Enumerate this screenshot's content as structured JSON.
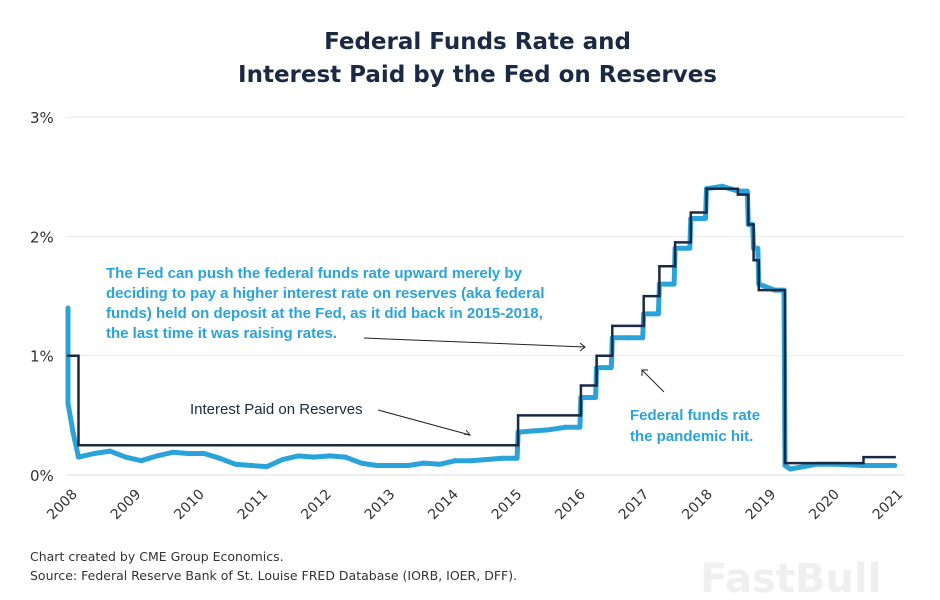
{
  "chart_data": {
    "type": "line",
    "title": "Federal Funds Rate and Interest Paid by the Fed on Reserves",
    "title_lines": [
      "Federal Funds Rate and",
      "Interest Paid by the Fed on Reserves"
    ],
    "xlabel": "",
    "ylabel": "",
    "y_ticks": [
      "0%",
      "1%",
      "2%",
      "3%"
    ],
    "ylim": [
      0,
      3
    ],
    "x_ticks": [
      "2008",
      "2009",
      "2010",
      "2011",
      "2012",
      "2013",
      "2014",
      "2015",
      "2016",
      "2017",
      "2018",
      "2019",
      "2020",
      "2021"
    ],
    "grid": "horizontal",
    "series": [
      {
        "name": "Federal funds rate",
        "color": "#2aa3db",
        "x": [
          "2008-10",
          "2008-10",
          "2008-11",
          "2008-12",
          "2009-03",
          "2009-06",
          "2009-09",
          "2009-12",
          "2010-03",
          "2010-06",
          "2010-09",
          "2010-12",
          "2011-03",
          "2011-06",
          "2011-09",
          "2011-12",
          "2012-03",
          "2012-06",
          "2012-09",
          "2012-12",
          "2013-03",
          "2013-06",
          "2013-09",
          "2013-12",
          "2014-03",
          "2014-06",
          "2014-09",
          "2014-12",
          "2015-03",
          "2015-06",
          "2015-09",
          "2015-12",
          "2016-03",
          "2016-06",
          "2016-09",
          "2016-12",
          "2017-03",
          "2017-06",
          "2017-09",
          "2017-12",
          "2018-03",
          "2018-06",
          "2018-09",
          "2018-12",
          "2019-03",
          "2019-06",
          "2019-08",
          "2019-09",
          "2019-10",
          "2020-01",
          "2020-03",
          "2020-04",
          "2020-09",
          "2021-01",
          "2021-06",
          "2021-09",
          "2021-12"
        ],
        "values": [
          1.4,
          0.6,
          0.35,
          0.15,
          0.18,
          0.2,
          0.15,
          0.12,
          0.16,
          0.19,
          0.18,
          0.18,
          0.14,
          0.09,
          0.08,
          0.07,
          0.13,
          0.16,
          0.15,
          0.16,
          0.15,
          0.1,
          0.08,
          0.08,
          0.08,
          0.1,
          0.09,
          0.12,
          0.12,
          0.13,
          0.14,
          0.36,
          0.37,
          0.38,
          0.4,
          0.65,
          0.9,
          1.15,
          1.15,
          1.35,
          1.6,
          1.9,
          2.15,
          2.4,
          2.42,
          2.38,
          2.1,
          1.9,
          1.6,
          1.55,
          0.08,
          0.05,
          0.09,
          0.09,
          0.08,
          0.08,
          0.08
        ]
      },
      {
        "name": "Interest Paid on Reserves",
        "color": "#1b2a44",
        "x": [
          "2008-10",
          "2008-12",
          "2015-12",
          "2016-12",
          "2017-03",
          "2017-06",
          "2017-12",
          "2018-03",
          "2018-06",
          "2018-09",
          "2018-12",
          "2019-06",
          "2019-08",
          "2019-09",
          "2019-10",
          "2020-03",
          "2021-06",
          "2021-12"
        ],
        "values": [
          1.0,
          0.25,
          0.5,
          0.75,
          1.0,
          1.25,
          1.5,
          1.75,
          1.95,
          2.2,
          2.4,
          2.35,
          2.1,
          1.8,
          1.55,
          0.1,
          0.15,
          0.15
        ]
      }
    ],
    "annotations": {
      "main": [
        "The Fed can push the federal funds rate upward merely by",
        "deciding to pay a higher interest rate on reserves (aka federal",
        "funds) held on deposit at the Fed, as it did back in 2015-2018,",
        "the last time it was raising rates."
      ],
      "ior_label": "Interest Paid on Reserves",
      "ffr_label": [
        "Federal funds rate",
        "the pandemic hit."
      ]
    }
  },
  "footer": {
    "credit": "Chart created by CME Group Economics.",
    "source": "Source: Federal Reserve Bank of St. Louise FRED Database (IORB, IOER, DFF)."
  },
  "watermark": "FastBull"
}
